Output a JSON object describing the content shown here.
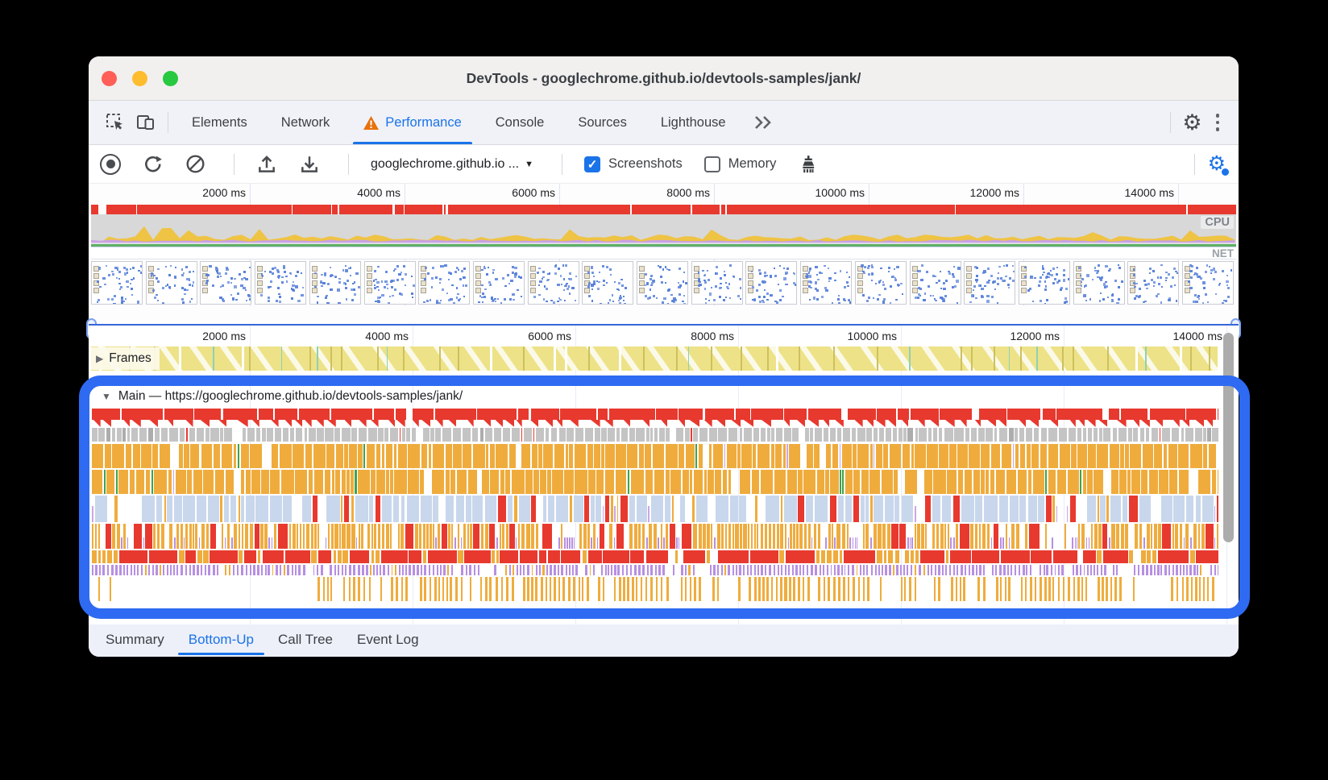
{
  "window_title": "DevTools - googlechrome.github.io/devtools-samples/jank/",
  "tabs": {
    "elements": "Elements",
    "network": "Network",
    "performance": "Performance",
    "console": "Console",
    "sources": "Sources",
    "lighthouse": "Lighthouse",
    "overflow": "»"
  },
  "toolbar": {
    "page_selector": "googlechrome.github.io ...",
    "screenshots": "Screenshots",
    "memory": "Memory",
    "screenshots_checked": "✓"
  },
  "overview_ticks": [
    "2000 ms",
    "4000 ms",
    "6000 ms",
    "8000 ms",
    "10000 ms",
    "12000 ms",
    "14000 ms"
  ],
  "timeline_ticks": [
    "2000 ms",
    "4000 ms",
    "6000 ms",
    "8000 ms",
    "10000 ms",
    "12000 ms",
    "14000 ms"
  ],
  "labels": {
    "cpu": "CPU",
    "net": "NET",
    "frames": "Frames",
    "main": "Main — https://googlechrome.github.io/devtools-samples/jank/"
  },
  "bottom_tabs": {
    "summary": "Summary",
    "bottom_up": "Bottom-Up",
    "call_tree": "Call Tree",
    "event_log": "Event Log"
  },
  "colors": {
    "accent": "#1A73E8",
    "annotation": "#2E6BF2",
    "task_red": "#E8392F",
    "task_gray": "#C4C4C4",
    "script_orange": "#EFAC3D",
    "timer_blue": "#C9D7EC",
    "paint_purple": "#B78FE2",
    "gpu_green": "#3FA34D",
    "cpu_yellow": "#EFC344",
    "cpu_purple": "#C9A3E2",
    "cpu_green": "#5FB065",
    "frames_yellow": "#EDE287",
    "frames_line": "#CDC05E"
  }
}
